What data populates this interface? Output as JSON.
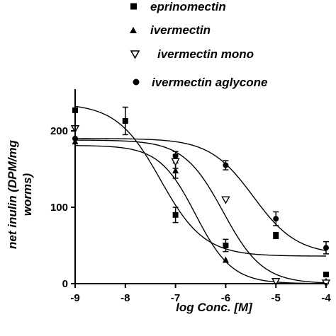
{
  "chart_data": {
    "type": "scatter",
    "title": "",
    "xlabel": "log Conc. [M]",
    "ylabel_lines": [
      "net inulin (DPM/mg",
      "worms)"
    ],
    "xlim": [
      -9,
      -4
    ],
    "ylim": [
      0,
      250
    ],
    "xticks": [
      -9,
      -8,
      -7,
      -6,
      -5,
      -4
    ],
    "xtick_labels": [
      "-9",
      "-8",
      "-7",
      "-6",
      "-5",
      "-4"
    ],
    "yticks": [
      0,
      100,
      200
    ],
    "ytick_labels": [
      "0",
      "100",
      "200"
    ],
    "grid": false,
    "legend_position": "top",
    "series": [
      {
        "name": "eprinomectin",
        "marker": "filled-square",
        "points": [
          {
            "x": -9,
            "y": 227,
            "err": 0
          },
          {
            "x": -8,
            "y": 213,
            "err": 18
          },
          {
            "x": -7,
            "y": 90,
            "err": 10
          },
          {
            "x": -6,
            "y": 50,
            "err": 8
          },
          {
            "x": -5,
            "y": 63,
            "err": 4
          },
          {
            "x": -4,
            "y": 12,
            "err": 0
          }
        ],
        "curve": {
          "bottom": 36,
          "top": 236,
          "logEC50": -7.3,
          "hill": -1
        }
      },
      {
        "name": "ivermectin",
        "marker": "filled-triangle",
        "points": [
          {
            "x": -9,
            "y": 186,
            "err": 0
          },
          {
            "x": -7,
            "y": 148,
            "err": 10
          },
          {
            "x": -6,
            "y": 31,
            "err": 0
          },
          {
            "x": -4,
            "y": 3,
            "err": 0
          }
        ],
        "curve": {
          "bottom": 0,
          "top": 181,
          "logEC50": -6.6,
          "hill": -1.2
        }
      },
      {
        "name": "ivermectin mono",
        "marker": "open-triangle-down",
        "points": [
          {
            "x": -9,
            "y": 203,
            "err": 0
          },
          {
            "x": -7,
            "y": 160,
            "err": 9
          },
          {
            "x": -6,
            "y": 110,
            "err": 0
          },
          {
            "x": -5,
            "y": 3,
            "err": 0
          },
          {
            "x": -4,
            "y": 1,
            "err": 0
          }
        ],
        "curve": {
          "bottom": 0,
          "top": 188,
          "logEC50": -6.05,
          "hill": -1.1
        }
      },
      {
        "name": "ivermectin aglycone",
        "marker": "filled-circle",
        "points": [
          {
            "x": -9,
            "y": 190,
            "err": 0
          },
          {
            "x": -7,
            "y": 167,
            "err": 6
          },
          {
            "x": -6,
            "y": 155,
            "err": 6
          },
          {
            "x": -5,
            "y": 85,
            "err": 9
          },
          {
            "x": -4,
            "y": 47,
            "err": 8
          }
        ],
        "curve": {
          "bottom": 38,
          "top": 190,
          "logEC50": -5.45,
          "hill": -1
        }
      }
    ]
  }
}
